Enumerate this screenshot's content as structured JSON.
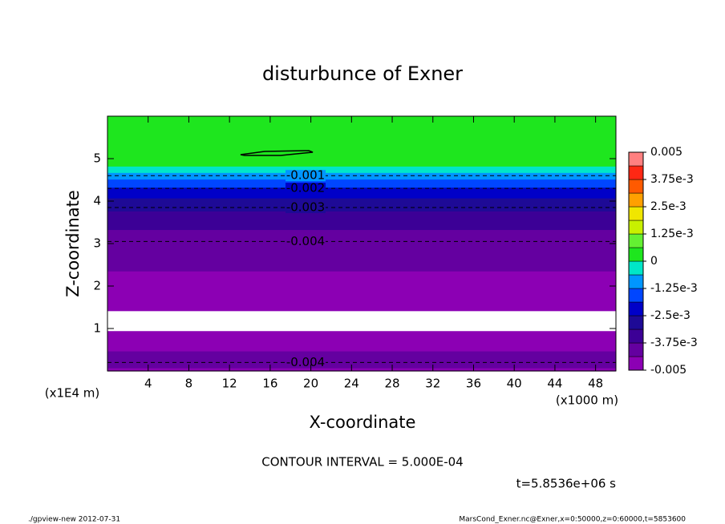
{
  "chart_data": {
    "type": "contour",
    "title": "disturbunce of Exner",
    "x_label": "X-coordinate",
    "y_label": "Z-coordinate",
    "x_unit": "(x1000 m)",
    "y_unit": "(x1E4 m)",
    "xlim": [
      0,
      50
    ],
    "xticks": [
      4,
      8,
      12,
      16,
      20,
      24,
      28,
      32,
      36,
      40,
      44,
      48
    ],
    "ylim": [
      0,
      6
    ],
    "yticks": [
      1,
      2,
      3,
      4,
      5
    ],
    "z": [
      0,
      0.2,
      0.5,
      0.8,
      0.95,
      1.0,
      1.35,
      1.42,
      1.6,
      2.0,
      2.3,
      3.05,
      3.5,
      3.85,
      4.3,
      4.6,
      4.75,
      4.9,
      6.0
    ],
    "values": [
      -0.0046,
      -0.004,
      -0.0044,
      -0.0049,
      -0.005,
      -0.00505,
      -0.00505,
      -0.005,
      -0.00485,
      -0.00465,
      -0.0044,
      -0.004,
      -0.0036,
      -0.003,
      -0.002,
      -0.001,
      -0.0002,
      0.0002,
      0.0003
    ],
    "contours": [
      {
        "level": -0.001,
        "z": 4.6
      },
      {
        "level": -0.002,
        "z": 4.3
      },
      {
        "level": -0.003,
        "z": 3.85
      },
      {
        "level": -0.004,
        "z": 3.05
      },
      {
        "level": -0.004,
        "z": 0.2
      }
    ],
    "clim": [
      -0.005,
      0.005
    ],
    "colors": [
      "#8c00b4",
      "#6400a0",
      "#3c0096",
      "#1e0a96",
      "#0000c8",
      "#0046ff",
      "#0096ff",
      "#00e6c8",
      "#1ee61e",
      "#64f032",
      "#c8f000",
      "#f0e600",
      "#ffa000",
      "#ff5a00",
      "#ff2814",
      "#ff8080"
    ],
    "cticks": [
      {
        "value": -0.005,
        "label": "-0.005"
      },
      {
        "value": -0.00375,
        "label": "-3.75e-3"
      },
      {
        "value": -0.0025,
        "label": "-2.5e-3"
      },
      {
        "value": -0.00125,
        "label": "-1.25e-3"
      },
      0,
      {
        "value": 0.00125,
        "label": "1.25e-3"
      },
      {
        "value": 0.0025,
        "label": "2.5e-3"
      },
      {
        "value": 0.00375,
        "label": "3.75e-3"
      },
      0.005
    ],
    "interval_text": "CONTOUR INTERVAL = 5.000E-04",
    "time_text": "t=5.8536e+06 s",
    "footer_left": "./gpview-new   2012-07-31",
    "footer_right": "MarsCond_Exner.nc@Exner,x=0:50000,z=0:60000,t=5853600"
  }
}
